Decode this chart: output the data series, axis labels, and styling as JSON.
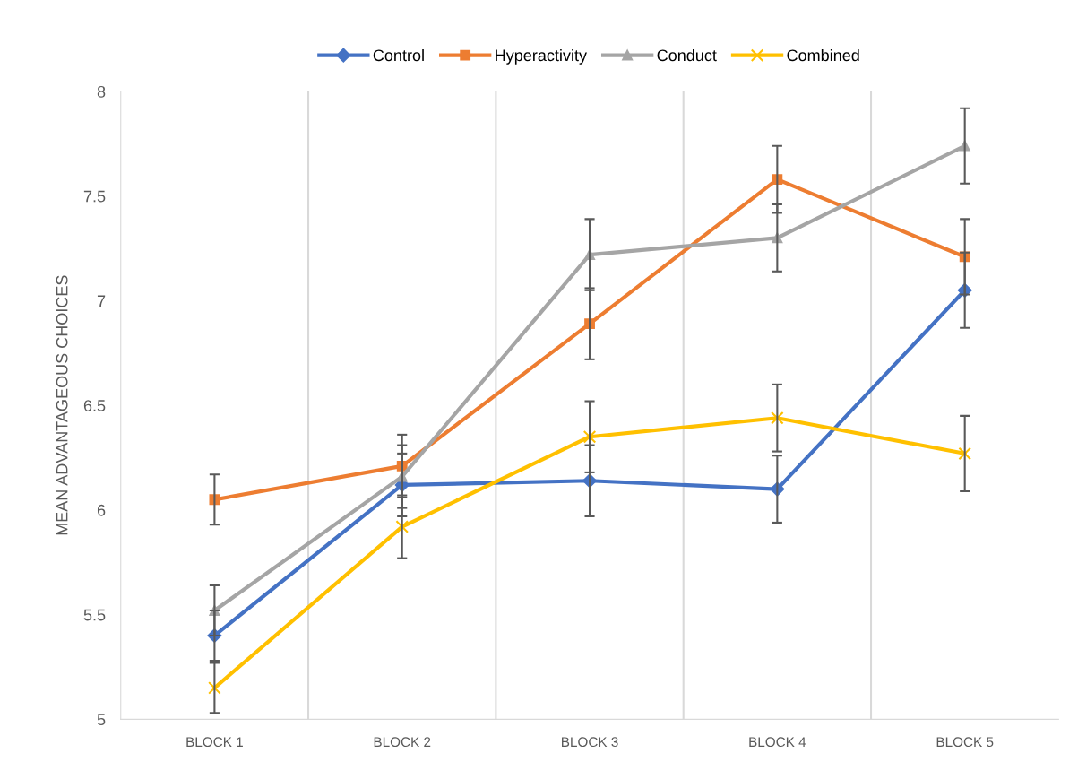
{
  "chart_data": {
    "type": "line",
    "ylabel": "MEAN ADVANTAGEOUS CHOICES",
    "categories": [
      "BLOCK 1",
      "BLOCK 2",
      "BLOCK 3",
      "BLOCK 4",
      "BLOCK 5"
    ],
    "ylim": [
      5,
      8
    ],
    "yticks": [
      5,
      5.5,
      6,
      6.5,
      7,
      7.5,
      8
    ],
    "grid": "x",
    "legend": "top",
    "series": [
      {
        "name": "Control",
        "color": "#4472c4",
        "marker": "diamond",
        "values": [
          5.4,
          6.12,
          6.14,
          6.1,
          7.05
        ],
        "errors": [
          0.12,
          0.15,
          0.17,
          0.16,
          0.18
        ]
      },
      {
        "name": "Hyperactivity",
        "color": "#ed7d31",
        "marker": "square",
        "values": [
          6.05,
          6.21,
          6.89,
          7.58,
          7.21
        ],
        "errors": [
          0.12,
          0.15,
          0.17,
          0.16,
          0.18
        ]
      },
      {
        "name": "Conduct",
        "color": "#a5a5a5",
        "marker": "triangle",
        "values": [
          5.52,
          6.16,
          7.22,
          7.3,
          7.74
        ],
        "errors": [
          0.12,
          0.15,
          0.17,
          0.16,
          0.18
        ]
      },
      {
        "name": "Combined",
        "color": "#ffc000",
        "marker": "cross",
        "values": [
          5.15,
          5.92,
          6.35,
          6.44,
          6.27
        ],
        "errors": [
          0.12,
          0.15,
          0.17,
          0.16,
          0.18
        ]
      }
    ]
  }
}
